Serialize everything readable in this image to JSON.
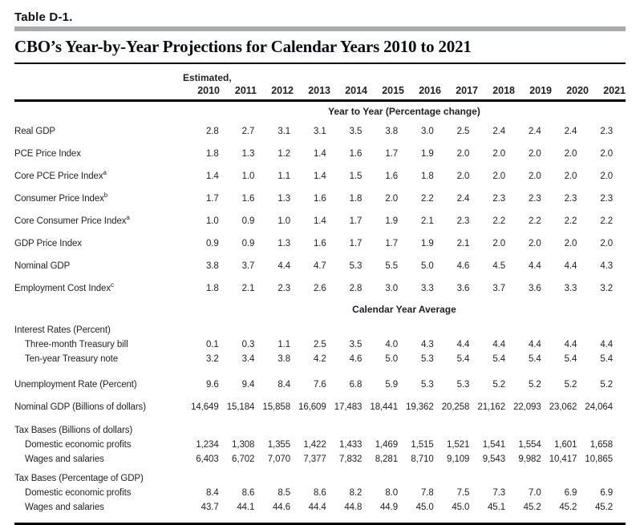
{
  "page": {
    "table_label": "Table D-1.",
    "title": "CBO’s Year-by-Year Projections for Calendar Years 2010 to 2021"
  },
  "header": {
    "estimated_label": "Estimated,",
    "years": [
      "2010",
      "2011",
      "2012",
      "2013",
      "2014",
      "2015",
      "2016",
      "2017",
      "2018",
      "2019",
      "2020",
      "2021"
    ]
  },
  "colors": {
    "text": "#222226",
    "divider_gray": "#a9abad",
    "rule_black": "#000000",
    "background": "#ffffff"
  },
  "sections": [
    {
      "heading": "Year to Year (Percentage change)",
      "rows": [
        {
          "type": "row",
          "label": "Real GDP",
          "values": [
            "2.8",
            "2.7",
            "3.1",
            "3.1",
            "3.5",
            "3.8",
            "3.0",
            "2.5",
            "2.4",
            "2.4",
            "2.4",
            "2.3"
          ]
        },
        {
          "type": "row",
          "label": "PCE Price Index",
          "values": [
            "1.8",
            "1.3",
            "1.2",
            "1.4",
            "1.6",
            "1.7",
            "1.9",
            "2.0",
            "2.0",
            "2.0",
            "2.0",
            "2.0"
          ]
        },
        {
          "type": "row",
          "label": "Core PCE Price Index",
          "sup": "a",
          "values": [
            "1.4",
            "1.0",
            "1.1",
            "1.4",
            "1.5",
            "1.6",
            "1.8",
            "2.0",
            "2.0",
            "2.0",
            "2.0",
            "2.0"
          ]
        },
        {
          "type": "row",
          "label": "Consumer Price Index",
          "sup": "b",
          "values": [
            "1.7",
            "1.6",
            "1.3",
            "1.6",
            "1.8",
            "2.0",
            "2.2",
            "2.4",
            "2.3",
            "2.3",
            "2.3",
            "2.3"
          ]
        },
        {
          "type": "row",
          "label": "Core Consumer Price Index",
          "sup": "a",
          "values": [
            "1.0",
            "0.9",
            "1.0",
            "1.4",
            "1.7",
            "1.9",
            "2.1",
            "2.3",
            "2.2",
            "2.2",
            "2.2",
            "2.2"
          ]
        },
        {
          "type": "row",
          "label": "GDP Price Index",
          "values": [
            "0.9",
            "0.9",
            "1.3",
            "1.6",
            "1.7",
            "1.7",
            "1.9",
            "2.1",
            "2.0",
            "2.0",
            "2.0",
            "2.0"
          ]
        },
        {
          "type": "row",
          "label": "Nominal GDP",
          "values": [
            "3.8",
            "3.7",
            "4.4",
            "4.7",
            "5.3",
            "5.5",
            "5.0",
            "4.6",
            "4.5",
            "4.4",
            "4.4",
            "4.3"
          ]
        },
        {
          "type": "row",
          "label": "Employment Cost Index",
          "sup": "c",
          "values": [
            "1.8",
            "2.1",
            "2.3",
            "2.6",
            "2.8",
            "3.0",
            "3.3",
            "3.6",
            "3.7",
            "3.6",
            "3.3",
            "3.2"
          ]
        }
      ]
    },
    {
      "heading": "Calendar Year Average",
      "rows": [
        {
          "type": "group",
          "label": "Interest Rates (Percent)"
        },
        {
          "type": "sub",
          "label": "Three-month Treasury bill",
          "values": [
            "0.1",
            "0.3",
            "1.1",
            "2.5",
            "3.5",
            "4.0",
            "4.3",
            "4.4",
            "4.4",
            "4.4",
            "4.4",
            "4.4"
          ]
        },
        {
          "type": "sub",
          "label": "Ten-year Treasury note",
          "values": [
            "3.2",
            "3.4",
            "3.8",
            "4.2",
            "4.6",
            "5.0",
            "5.3",
            "5.4",
            "5.4",
            "5.4",
            "5.4",
            "5.4"
          ]
        },
        {
          "type": "row",
          "gap": true,
          "label": "Unemployment Rate (Percent)",
          "values": [
            "9.6",
            "9.4",
            "8.4",
            "7.6",
            "6.8",
            "5.9",
            "5.3",
            "5.3",
            "5.2",
            "5.2",
            "5.2",
            "5.2"
          ]
        },
        {
          "type": "row",
          "label": "Nominal GDP (Billions of dollars)",
          "values": [
            "14,649",
            "15,184",
            "15,858",
            "16,609",
            "17,483",
            "18,441",
            "19,362",
            "20,258",
            "21,162",
            "22,093",
            "23,062",
            "24,064"
          ]
        },
        {
          "type": "group",
          "label": "Tax Bases (Billions of dollars)"
        },
        {
          "type": "sub",
          "label": "Domestic economic profits",
          "values": [
            "1,234",
            "1,308",
            "1,355",
            "1,422",
            "1,433",
            "1,469",
            "1,515",
            "1,521",
            "1,541",
            "1,554",
            "1,601",
            "1,658"
          ]
        },
        {
          "type": "sub",
          "label": "Wages and salaries",
          "values": [
            "6,403",
            "6,702",
            "7,070",
            "7,377",
            "7,832",
            "8,281",
            "8,710",
            "9,109",
            "9,543",
            "9,982",
            "10,417",
            "10,865"
          ]
        },
        {
          "type": "group",
          "label": "Tax Bases (Percentage of GDP)"
        },
        {
          "type": "sub",
          "label": "Domestic economic profits",
          "values": [
            "8.4",
            "8.6",
            "8.5",
            "8.6",
            "8.2",
            "8.0",
            "7.8",
            "7.5",
            "7.3",
            "7.0",
            "6.9",
            "6.9"
          ]
        },
        {
          "type": "sub",
          "label": "Wages and salaries",
          "values": [
            "43.7",
            "44.1",
            "44.6",
            "44.4",
            "44.8",
            "44.9",
            "45.0",
            "45.0",
            "45.1",
            "45.2",
            "45.2",
            "45.2"
          ]
        }
      ]
    }
  ]
}
